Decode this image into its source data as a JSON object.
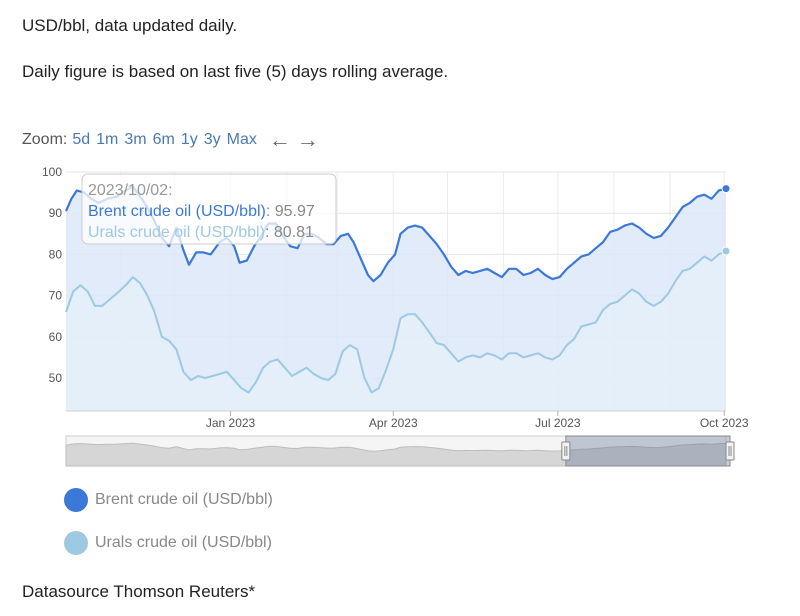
{
  "intro": {
    "line1": "USD/bbl, data updated daily.",
    "line2": "Daily figure is based on last five (5) days rolling average."
  },
  "zoom": {
    "label": "Zoom:",
    "options": [
      "5d",
      "1m",
      "3m",
      "6m",
      "1y",
      "3y",
      "Max"
    ],
    "prev_icon": "arrow-left-icon",
    "next_icon": "arrow-right-icon"
  },
  "chart_data": {
    "type": "line",
    "title": "",
    "xlabel": "",
    "ylabel": "",
    "x_ticks": [
      "Jan 2023",
      "Apr 2023",
      "Jul 2023",
      "Oct 2023"
    ],
    "x_range": [
      "2022-10-02",
      "2023-10-02"
    ],
    "y_ticks": [
      50,
      60,
      70,
      80,
      90,
      100
    ],
    "ylim": [
      42,
      100
    ],
    "grid": true,
    "legend_position": "bottom-left",
    "series": [
      {
        "name": "Brent crude oil (USD/bbl)",
        "color": "#3c78d8",
        "points": [
          [
            "2022-10-02",
            90.5
          ],
          [
            "2022-10-05",
            93.5
          ],
          [
            "2022-10-08",
            95.5
          ],
          [
            "2022-10-12",
            95.0
          ],
          [
            "2022-10-16",
            93.5
          ],
          [
            "2022-10-20",
            92.5
          ],
          [
            "2022-10-25",
            93.5
          ],
          [
            "2022-10-30",
            94.0
          ],
          [
            "2022-11-04",
            95.5
          ],
          [
            "2022-11-08",
            96.5
          ],
          [
            "2022-11-12",
            94.0
          ],
          [
            "2022-11-16",
            91.5
          ],
          [
            "2022-11-20",
            88.0
          ],
          [
            "2022-11-24",
            84.0
          ],
          [
            "2022-11-28",
            82.0
          ],
          [
            "2022-12-02",
            86.5
          ],
          [
            "2022-12-06",
            81.0
          ],
          [
            "2022-12-09",
            77.5
          ],
          [
            "2022-12-13",
            80.5
          ],
          [
            "2022-12-17",
            80.5
          ],
          [
            "2022-12-21",
            80.0
          ],
          [
            "2022-12-26",
            83.0
          ],
          [
            "2022-12-30",
            84.0
          ],
          [
            "2023-01-03",
            82.0
          ],
          [
            "2023-01-06",
            78.0
          ],
          [
            "2023-01-10",
            78.5
          ],
          [
            "2023-01-14",
            82.0
          ],
          [
            "2023-01-18",
            84.5
          ],
          [
            "2023-01-22",
            87.5
          ],
          [
            "2023-01-26",
            87.5
          ],
          [
            "2023-01-30",
            84.5
          ],
          [
            "2023-02-03",
            82.0
          ],
          [
            "2023-02-07",
            81.5
          ],
          [
            "2023-02-11",
            85.0
          ],
          [
            "2023-02-15",
            85.0
          ],
          [
            "2023-02-19",
            84.0
          ],
          [
            "2023-02-23",
            82.5
          ],
          [
            "2023-02-27",
            82.5
          ],
          [
            "2023-03-03",
            84.5
          ],
          [
            "2023-03-07",
            85.0
          ],
          [
            "2023-03-10",
            83.0
          ],
          [
            "2023-03-14",
            79.0
          ],
          [
            "2023-03-18",
            75.0
          ],
          [
            "2023-03-21",
            73.5
          ],
          [
            "2023-03-25",
            75.0
          ],
          [
            "2023-03-29",
            78.0
          ],
          [
            "2023-04-02",
            80.0
          ],
          [
            "2023-04-05",
            85.0
          ],
          [
            "2023-04-09",
            86.5
          ],
          [
            "2023-04-13",
            87.0
          ],
          [
            "2023-04-17",
            86.5
          ],
          [
            "2023-04-21",
            84.5
          ],
          [
            "2023-04-25",
            82.5
          ],
          [
            "2023-04-29",
            80.0
          ],
          [
            "2023-05-03",
            77.0
          ],
          [
            "2023-05-07",
            75.0
          ],
          [
            "2023-05-11",
            76.0
          ],
          [
            "2023-05-15",
            75.5
          ],
          [
            "2023-05-19",
            76.0
          ],
          [
            "2023-05-23",
            76.5
          ],
          [
            "2023-05-27",
            75.5
          ],
          [
            "2023-05-31",
            74.5
          ],
          [
            "2023-06-04",
            76.5
          ],
          [
            "2023-06-08",
            76.5
          ],
          [
            "2023-06-12",
            75.0
          ],
          [
            "2023-06-16",
            75.5
          ],
          [
            "2023-06-20",
            76.5
          ],
          [
            "2023-06-24",
            75.0
          ],
          [
            "2023-06-28",
            74.0
          ],
          [
            "2023-07-02",
            74.5
          ],
          [
            "2023-07-06",
            76.5
          ],
          [
            "2023-07-10",
            78.0
          ],
          [
            "2023-07-14",
            79.5
          ],
          [
            "2023-07-18",
            80.0
          ],
          [
            "2023-07-22",
            81.5
          ],
          [
            "2023-07-26",
            83.0
          ],
          [
            "2023-07-30",
            85.5
          ],
          [
            "2023-08-03",
            86.0
          ],
          [
            "2023-08-07",
            87.0
          ],
          [
            "2023-08-11",
            87.5
          ],
          [
            "2023-08-15",
            86.5
          ],
          [
            "2023-08-19",
            85.0
          ],
          [
            "2023-08-23",
            84.0
          ],
          [
            "2023-08-27",
            84.5
          ],
          [
            "2023-08-31",
            86.5
          ],
          [
            "2023-09-04",
            89.0
          ],
          [
            "2023-09-08",
            91.5
          ],
          [
            "2023-09-12",
            92.5
          ],
          [
            "2023-09-16",
            94.0
          ],
          [
            "2023-09-20",
            94.5
          ],
          [
            "2023-09-24",
            93.5
          ],
          [
            "2023-09-28",
            95.5
          ],
          [
            "2023-10-02",
            95.97
          ]
        ]
      },
      {
        "name": "Urals crude oil (USD/bbl)",
        "color": "#9ec9e2",
        "points": [
          [
            "2022-10-02",
            66.0
          ],
          [
            "2022-10-06",
            71.0
          ],
          [
            "2022-10-10",
            72.5
          ],
          [
            "2022-10-14",
            71.0
          ],
          [
            "2022-10-18",
            67.5
          ],
          [
            "2022-10-22",
            67.5
          ],
          [
            "2022-10-26",
            69.0
          ],
          [
            "2022-10-30",
            70.5
          ],
          [
            "2022-11-04",
            72.5
          ],
          [
            "2022-11-08",
            74.5
          ],
          [
            "2022-11-12",
            73.0
          ],
          [
            "2022-11-16",
            70.0
          ],
          [
            "2022-11-20",
            66.0
          ],
          [
            "2022-11-24",
            60.0
          ],
          [
            "2022-11-28",
            59.0
          ],
          [
            "2022-12-02",
            57.0
          ],
          [
            "2022-12-06",
            51.5
          ],
          [
            "2022-12-10",
            49.5
          ],
          [
            "2022-12-14",
            50.5
          ],
          [
            "2022-12-18",
            50.0
          ],
          [
            "2022-12-22",
            50.5
          ],
          [
            "2022-12-26",
            51.0
          ],
          [
            "2022-12-30",
            51.5
          ],
          [
            "2023-01-03",
            49.5
          ],
          [
            "2023-01-07",
            47.5
          ],
          [
            "2023-01-11",
            46.5
          ],
          [
            "2023-01-15",
            49.0
          ],
          [
            "2023-01-19",
            52.5
          ],
          [
            "2023-01-23",
            54.0
          ],
          [
            "2023-01-27",
            54.5
          ],
          [
            "2023-01-31",
            52.5
          ],
          [
            "2023-02-04",
            50.5
          ],
          [
            "2023-02-08",
            51.5
          ],
          [
            "2023-02-12",
            52.5
          ],
          [
            "2023-02-16",
            51.0
          ],
          [
            "2023-02-20",
            50.0
          ],
          [
            "2023-02-24",
            49.5
          ],
          [
            "2023-02-28",
            51.0
          ],
          [
            "2023-03-04",
            56.5
          ],
          [
            "2023-03-08",
            58.0
          ],
          [
            "2023-03-12",
            57.0
          ],
          [
            "2023-03-16",
            50.0
          ],
          [
            "2023-03-20",
            46.5
          ],
          [
            "2023-03-24",
            47.5
          ],
          [
            "2023-03-28",
            52.0
          ],
          [
            "2023-04-01",
            57.0
          ],
          [
            "2023-04-05",
            64.5
          ],
          [
            "2023-04-09",
            65.5
          ],
          [
            "2023-04-13",
            65.5
          ],
          [
            "2023-04-17",
            63.5
          ],
          [
            "2023-04-21",
            61.0
          ],
          [
            "2023-04-25",
            58.5
          ],
          [
            "2023-04-29",
            58.0
          ],
          [
            "2023-05-03",
            56.0
          ],
          [
            "2023-05-07",
            54.0
          ],
          [
            "2023-05-11",
            55.0
          ],
          [
            "2023-05-15",
            55.5
          ],
          [
            "2023-05-19",
            55.0
          ],
          [
            "2023-05-23",
            56.0
          ],
          [
            "2023-05-27",
            55.5
          ],
          [
            "2023-05-31",
            54.5
          ],
          [
            "2023-06-04",
            56.0
          ],
          [
            "2023-06-08",
            56.0
          ],
          [
            "2023-06-12",
            55.0
          ],
          [
            "2023-06-16",
            55.5
          ],
          [
            "2023-06-20",
            56.0
          ],
          [
            "2023-06-24",
            55.0
          ],
          [
            "2023-06-28",
            54.5
          ],
          [
            "2023-07-02",
            55.5
          ],
          [
            "2023-07-06",
            58.0
          ],
          [
            "2023-07-10",
            59.5
          ],
          [
            "2023-07-14",
            62.5
          ],
          [
            "2023-07-18",
            63.0
          ],
          [
            "2023-07-22",
            63.5
          ],
          [
            "2023-07-26",
            66.5
          ],
          [
            "2023-07-30",
            68.0
          ],
          [
            "2023-08-03",
            68.5
          ],
          [
            "2023-08-07",
            70.0
          ],
          [
            "2023-08-11",
            71.5
          ],
          [
            "2023-08-15",
            70.5
          ],
          [
            "2023-08-19",
            68.5
          ],
          [
            "2023-08-23",
            67.5
          ],
          [
            "2023-08-27",
            68.5
          ],
          [
            "2023-08-31",
            70.5
          ],
          [
            "2023-09-04",
            73.5
          ],
          [
            "2023-09-08",
            76.0
          ],
          [
            "2023-09-12",
            76.5
          ],
          [
            "2023-09-16",
            78.0
          ],
          [
            "2023-09-20",
            79.5
          ],
          [
            "2023-09-24",
            78.5
          ],
          [
            "2023-09-28",
            80.0
          ],
          [
            "2023-10-02",
            80.81
          ]
        ]
      }
    ],
    "tooltip": {
      "date": "2023/10/02:",
      "rows": [
        {
          "label": "Brent crude oil (USD/bbl)",
          "value": "95.97"
        },
        {
          "label": "Urals crude oil (USD/bbl)",
          "value": "80.81"
        }
      ]
    },
    "navigator": {
      "selected_range": [
        "2023-07-01",
        "2023-10-02"
      ]
    }
  },
  "legend": [
    {
      "label": "Brent crude oil (USD/bbl)",
      "color": "#3c78d8"
    },
    {
      "label": "Urals crude oil (USD/bbl)",
      "color": "#9ec9e2"
    }
  ],
  "footer": {
    "source": "Datasource Thomson Reuters*"
  }
}
